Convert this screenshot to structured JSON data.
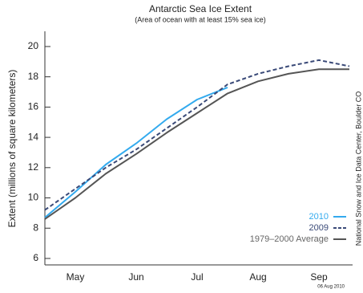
{
  "chart_data": {
    "type": "line",
    "title": "Antarctic Sea Ice Extent",
    "subtitle": "(Area of ocean with at least 15% sea ice)",
    "y_label": "Extent (millions of square kilometers)",
    "credit": "National Snow and Ice Data Center, Boulder CO",
    "date_label": "06 Aug 2010",
    "categories": [
      null,
      "May",
      null,
      "Jun",
      null,
      "Jul",
      null,
      "Aug",
      null,
      "Sep",
      null
    ],
    "series": [
      {
        "name": "2010",
        "color": "#33aaee",
        "style": "solid",
        "values": [
          8.7,
          10.4,
          12.2,
          13.6,
          15.2,
          16.5,
          17.3,
          null,
          null,
          null,
          null
        ]
      },
      {
        "name": "2009",
        "color": "#3a4a78",
        "style": "dashed",
        "values": [
          9.2,
          10.6,
          12.0,
          13.2,
          14.6,
          16.0,
          17.5,
          18.2,
          18.7,
          19.1,
          18.7
        ]
      },
      {
        "name": "1979–2000 Average",
        "color": "#555555",
        "style": "solid",
        "values": [
          8.6,
          10.0,
          11.6,
          12.9,
          14.3,
          15.6,
          16.9,
          17.7,
          18.2,
          18.5,
          18.5
        ]
      }
    ],
    "ylim": [
      5.6,
      21
    ],
    "yticks": [
      6,
      8,
      10,
      12,
      14,
      16,
      18,
      20
    ]
  }
}
